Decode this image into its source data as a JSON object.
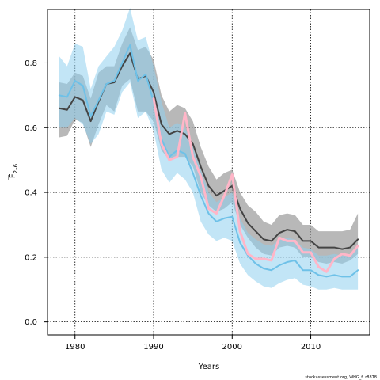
{
  "chart_data": {
    "type": "line",
    "xlabel": "Years",
    "ylabel_main": "F",
    "ylabel_sub": "2–6",
    "xlim": [
      1976.5,
      2017.5
    ],
    "ylim": [
      -0.04,
      0.965
    ],
    "xticks": [
      1980,
      1990,
      2000,
      2010
    ],
    "yticks": [
      0.0,
      0.2,
      0.4,
      0.6,
      0.8
    ],
    "grid": true,
    "credit": "stockassessment.org, WHG_f, r8878",
    "colors": {
      "grey_band": "#9a9a9a",
      "grey_line": "#444444",
      "blue_band": "#8fd0ef",
      "blue_line": "#6ec1e8",
      "pink_line": "#ffb6c8"
    },
    "series": [
      {
        "type": "band",
        "x": [
          1978,
          1979,
          1980,
          1981,
          1982,
          1983,
          1984,
          1985,
          1986,
          1987,
          1988,
          1989,
          1990,
          1991,
          1992,
          1993,
          1994,
          1995,
          1996,
          1997,
          1998,
          1999,
          2000,
          2001,
          2002,
          2003,
          2004,
          2005,
          2006,
          2007,
          2008,
          2009,
          2010,
          2011,
          2012,
          2013,
          2014,
          2015,
          2016
        ],
        "upper": [
          0.74,
          0.735,
          0.77,
          0.76,
          0.69,
          0.77,
          0.79,
          0.79,
          0.86,
          0.91,
          0.84,
          0.85,
          0.81,
          0.7,
          0.65,
          0.67,
          0.66,
          0.62,
          0.54,
          0.48,
          0.44,
          0.46,
          0.47,
          0.4,
          0.36,
          0.34,
          0.31,
          0.3,
          0.33,
          0.335,
          0.33,
          0.3,
          0.3,
          0.28,
          0.28,
          0.28,
          0.28,
          0.285,
          0.335
        ],
        "lower": [
          0.57,
          0.575,
          0.625,
          0.615,
          0.54,
          0.61,
          0.67,
          0.65,
          0.73,
          0.75,
          0.65,
          0.65,
          0.62,
          0.53,
          0.5,
          0.51,
          0.51,
          0.48,
          0.4,
          0.36,
          0.34,
          0.35,
          0.37,
          0.3,
          0.26,
          0.23,
          0.21,
          0.205,
          0.23,
          0.235,
          0.23,
          0.2,
          0.2,
          0.185,
          0.18,
          0.185,
          0.18,
          0.19,
          0.21
        ]
      },
      {
        "type": "band",
        "x": [
          1978,
          1979,
          1980,
          1981,
          1982,
          1983,
          1984,
          1985,
          1986,
          1987,
          1988,
          1989,
          1990,
          1991,
          1992,
          1993,
          1994,
          1995,
          1996,
          1997,
          1998,
          1999,
          2000,
          2001,
          2002,
          2003,
          2004,
          2005,
          2006,
          2007,
          2008,
          2009,
          2010,
          2011,
          2012,
          2013,
          2014,
          2015,
          2016
        ],
        "upper": [
          0.82,
          0.79,
          0.86,
          0.85,
          0.72,
          0.79,
          0.82,
          0.85,
          0.9,
          0.97,
          0.87,
          0.88,
          0.79,
          0.68,
          0.6,
          0.615,
          0.6,
          0.54,
          0.47,
          0.4,
          0.37,
          0.385,
          0.4,
          0.32,
          0.275,
          0.255,
          0.24,
          0.235,
          0.255,
          0.26,
          0.255,
          0.23,
          0.225,
          0.205,
          0.205,
          0.21,
          0.205,
          0.205,
          0.235
        ],
        "lower": [
          0.6,
          0.6,
          0.63,
          0.61,
          0.55,
          0.58,
          0.65,
          0.64,
          0.71,
          0.74,
          0.63,
          0.65,
          0.59,
          0.47,
          0.43,
          0.46,
          0.44,
          0.4,
          0.31,
          0.27,
          0.25,
          0.26,
          0.25,
          0.18,
          0.145,
          0.125,
          0.11,
          0.105,
          0.12,
          0.13,
          0.135,
          0.115,
          0.11,
          0.1,
          0.1,
          0.105,
          0.1,
          0.1,
          0.1
        ]
      },
      {
        "type": "line",
        "x": [
          1978,
          1979,
          1980,
          1981,
          1982,
          1983,
          1984,
          1985,
          1986,
          1987,
          1988,
          1989,
          1990,
          1991,
          1992,
          1993,
          1994,
          1995,
          1996,
          1997,
          1998,
          1999,
          2000,
          2001,
          2002,
          2003,
          2004,
          2005,
          2006,
          2007,
          2008,
          2009,
          2010,
          2011,
          2012,
          2013,
          2014,
          2015,
          2016
        ],
        "y": [
          0.66,
          0.655,
          0.695,
          0.685,
          0.62,
          0.68,
          0.735,
          0.74,
          0.79,
          0.83,
          0.75,
          0.76,
          0.71,
          0.61,
          0.58,
          0.59,
          0.58,
          0.55,
          0.48,
          0.42,
          0.39,
          0.405,
          0.42,
          0.35,
          0.305,
          0.28,
          0.255,
          0.25,
          0.275,
          0.285,
          0.28,
          0.25,
          0.25,
          0.23,
          0.23,
          0.23,
          0.225,
          0.23,
          0.255
        ]
      },
      {
        "type": "line",
        "x": [
          1978,
          1979,
          1980,
          1981,
          1982,
          1983,
          1984,
          1985,
          1986,
          1987,
          1988,
          1989,
          1990,
          1991,
          1992,
          1993,
          1994,
          1995,
          1996,
          1997,
          1998,
          1999,
          2000,
          2001,
          2002,
          2003,
          2004,
          2005,
          2006,
          2007,
          2008,
          2009,
          2010,
          2011,
          2012,
          2013,
          2014,
          2015,
          2016
        ],
        "y": [
          0.7,
          0.695,
          0.745,
          0.73,
          0.635,
          0.685,
          0.735,
          0.745,
          0.8,
          0.855,
          0.745,
          0.765,
          0.68,
          0.565,
          0.51,
          0.53,
          0.52,
          0.46,
          0.39,
          0.335,
          0.31,
          0.32,
          0.325,
          0.245,
          0.205,
          0.18,
          0.165,
          0.16,
          0.175,
          0.185,
          0.19,
          0.16,
          0.16,
          0.145,
          0.14,
          0.145,
          0.14,
          0.14,
          0.16
        ]
      },
      {
        "type": "line",
        "x": [
          1990,
          1991,
          1992,
          1993,
          1994,
          1995,
          1996,
          1997,
          1998,
          1999,
          2000,
          2001,
          2002,
          2003,
          2004,
          2005,
          2006,
          2007,
          2008,
          2009,
          2010,
          2011,
          2012,
          2013,
          2014,
          2015,
          2016
        ],
        "y": [
          0.69,
          0.55,
          0.5,
          0.51,
          0.645,
          0.51,
          0.45,
          0.35,
          0.335,
          0.39,
          0.455,
          0.28,
          0.21,
          0.195,
          0.195,
          0.19,
          0.26,
          0.25,
          0.25,
          0.215,
          0.215,
          0.17,
          0.155,
          0.195,
          0.21,
          0.205,
          0.235
        ]
      }
    ]
  }
}
